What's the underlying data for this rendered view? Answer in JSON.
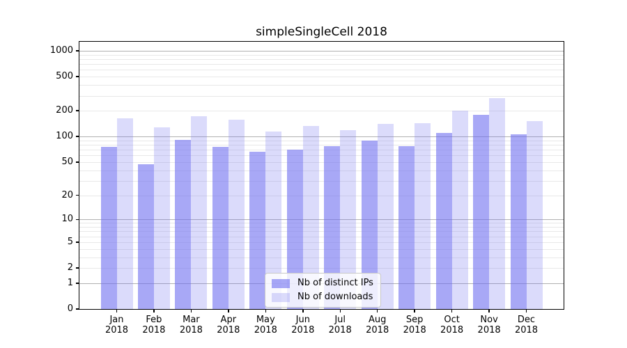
{
  "chart_data": {
    "type": "bar",
    "title": "simpleSingleCell 2018",
    "categories": [
      "Jan",
      "Feb",
      "Mar",
      "Apr",
      "May",
      "Jun",
      "Jul",
      "Aug",
      "Sep",
      "Oct",
      "Nov",
      "Dec"
    ],
    "year_label": "2018",
    "series": [
      {
        "name": "Nb of distinct IPs",
        "color": "rgba(110,110,240,0.6)",
        "values": [
          75,
          47,
          91,
          75,
          66,
          70,
          77,
          89,
          77,
          110,
          180,
          107
        ]
      },
      {
        "name": "Nb of downloads",
        "color": "rgba(110,110,240,0.25)",
        "values": [
          162,
          128,
          172,
          157,
          115,
          134,
          118,
          141,
          144,
          200,
          280,
          152
        ]
      }
    ],
    "yscale": "log10(value+1)",
    "yticks": [
      1000,
      500,
      200,
      100,
      50,
      20,
      10,
      5,
      2,
      1,
      0
    ],
    "ylim": [
      0,
      1273
    ],
    "major_grid_values": [
      1,
      10,
      100,
      1000
    ],
    "grid": "both",
    "legend_position": "lower-center-inside",
    "colors": {
      "bar_base": "#6e6ef0",
      "major_grid": "#b0b0b0",
      "minor_grid": "#e8e8e8",
      "axis": "#000000",
      "background": "#ffffff"
    }
  }
}
